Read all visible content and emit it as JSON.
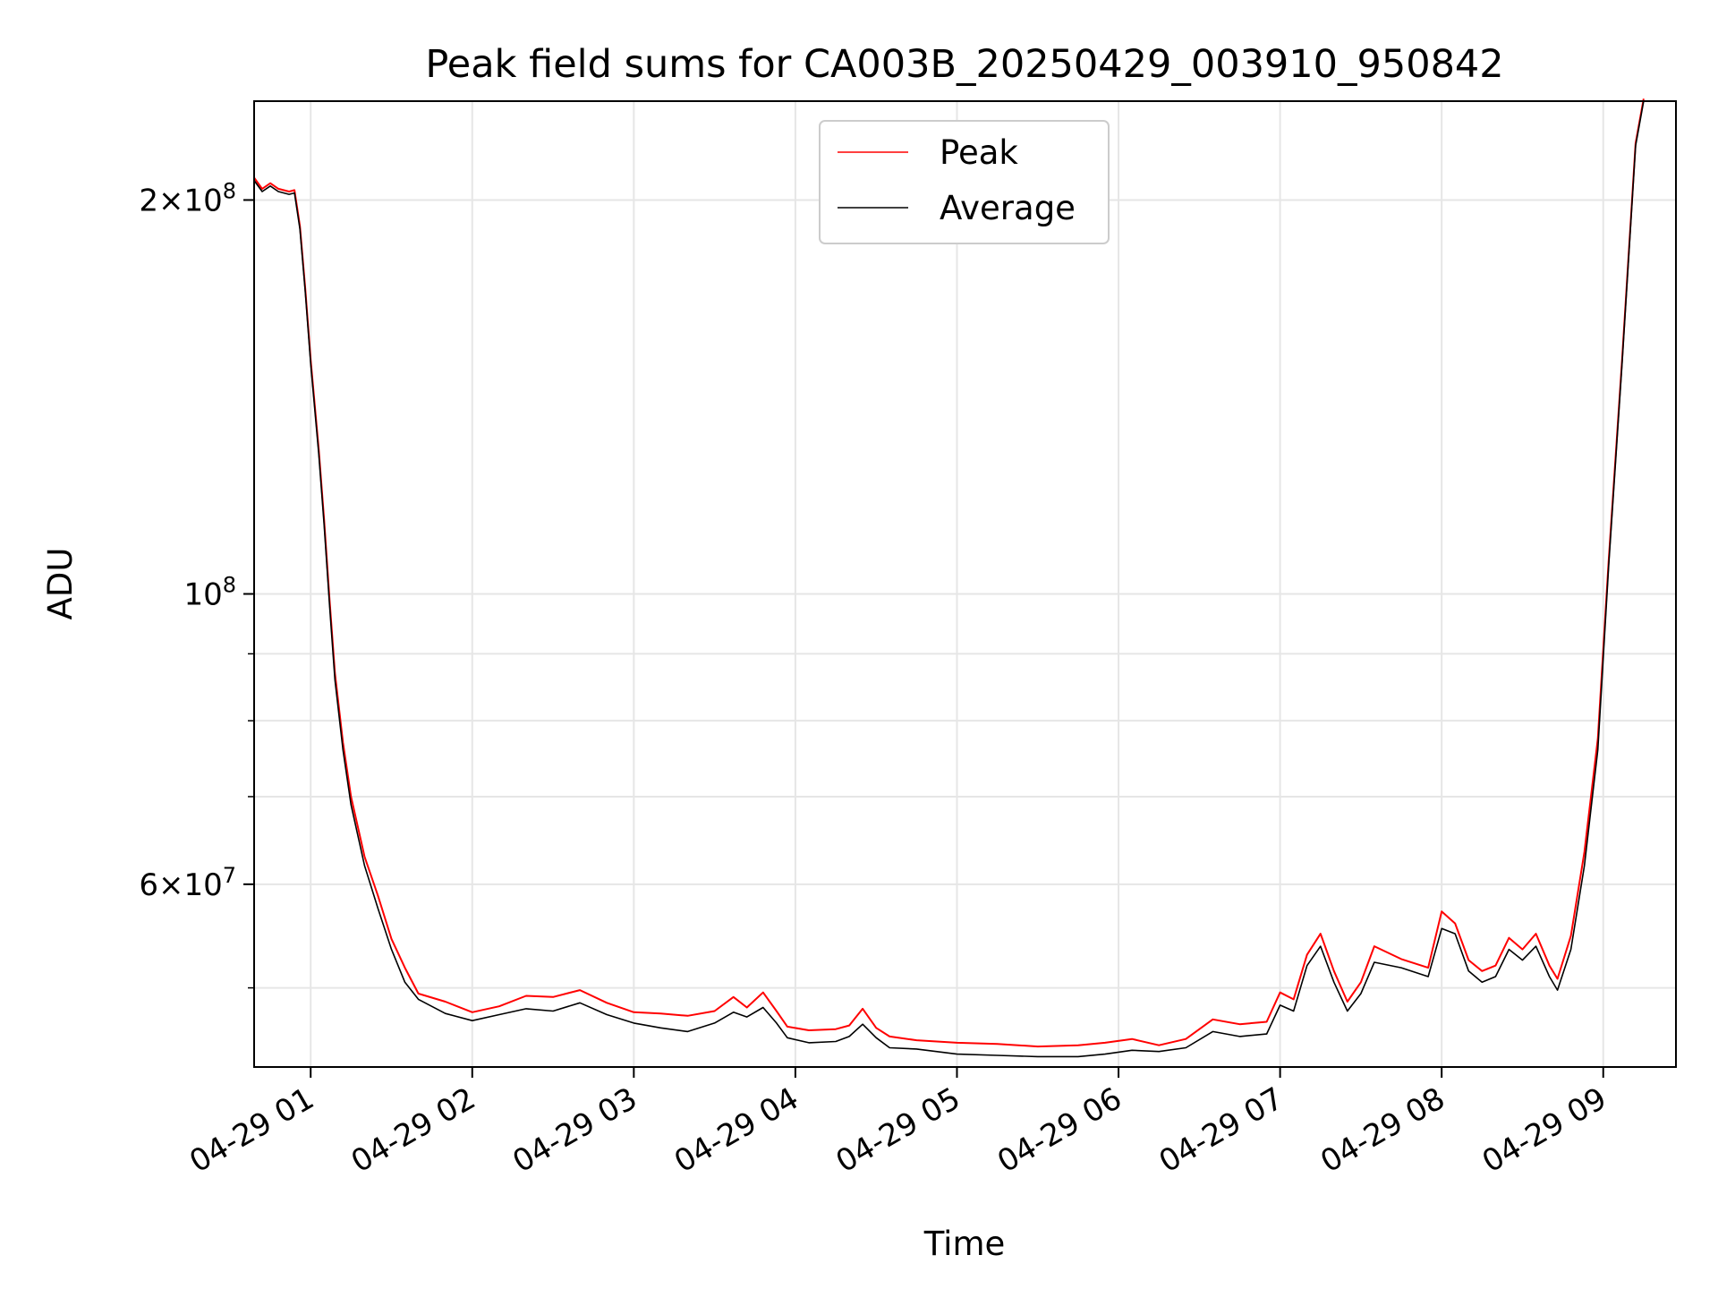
{
  "chart_data": {
    "type": "line",
    "title": "Peak field sums for CA003B_20250429_003910_950842",
    "xlabel": "Time",
    "ylabel": "ADU",
    "yscale": "log",
    "grid": true,
    "legend_position": "top-center",
    "x_axis": {
      "type": "datetime",
      "range": [
        "2025-04-29T00:39",
        "2025-04-29T09:27"
      ],
      "ticks": [
        {
          "value": "2025-04-29T01:00",
          "label": "04-29 01"
        },
        {
          "value": "2025-04-29T02:00",
          "label": "04-29 02"
        },
        {
          "value": "2025-04-29T03:00",
          "label": "04-29 03"
        },
        {
          "value": "2025-04-29T04:00",
          "label": "04-29 04"
        },
        {
          "value": "2025-04-29T05:00",
          "label": "04-29 05"
        },
        {
          "value": "2025-04-29T06:00",
          "label": "04-29 06"
        },
        {
          "value": "2025-04-29T07:00",
          "label": "04-29 07"
        },
        {
          "value": "2025-04-29T08:00",
          "label": "04-29 08"
        },
        {
          "value": "2025-04-29T09:00",
          "label": "04-29 09"
        }
      ]
    },
    "y_axis": {
      "range": [
        43500000,
        238000000
      ],
      "major_ticks": [
        {
          "value": 100000000,
          "base": "10",
          "exp": "8",
          "mant": ""
        },
        {
          "value": 200000000,
          "base": "10",
          "exp": "8",
          "mant": "2"
        },
        {
          "value": 60000000,
          "base": "10",
          "exp": "7",
          "mant": "6"
        }
      ],
      "minor_grid_values": [
        50000000,
        70000000,
        80000000,
        90000000
      ]
    },
    "series": [
      {
        "name": "Average",
        "color": "#000000",
        "points": [
          [
            "2025-04-29T00:39",
            207000000
          ],
          [
            "2025-04-29T00:42",
            203000000
          ],
          [
            "2025-04-29T00:45",
            205000000
          ],
          [
            "2025-04-29T00:48",
            203000000
          ],
          [
            "2025-04-29T00:52",
            202000000
          ],
          [
            "2025-04-29T00:54",
            202500000
          ],
          [
            "2025-04-29T00:56",
            190000000
          ],
          [
            "2025-04-29T00:58",
            170000000
          ],
          [
            "2025-04-29T01:00",
            150000000
          ],
          [
            "2025-04-29T01:03",
            128000000
          ],
          [
            "2025-04-29T01:05",
            113000000
          ],
          [
            "2025-04-29T01:07",
            98000000
          ],
          [
            "2025-04-29T01:09",
            86000000
          ],
          [
            "2025-04-29T01:12",
            76000000
          ],
          [
            "2025-04-29T01:15",
            69000000
          ],
          [
            "2025-04-29T01:20",
            62000000
          ],
          [
            "2025-04-29T01:25",
            57500000
          ],
          [
            "2025-04-29T01:30",
            53500000
          ],
          [
            "2025-04-29T01:35",
            50500000
          ],
          [
            "2025-04-29T01:40",
            49000000
          ],
          [
            "2025-04-29T01:50",
            47800000
          ],
          [
            "2025-04-29T02:00",
            47200000
          ],
          [
            "2025-04-29T02:10",
            47700000
          ],
          [
            "2025-04-29T02:20",
            48200000
          ],
          [
            "2025-04-29T02:30",
            48000000
          ],
          [
            "2025-04-29T02:40",
            48700000
          ],
          [
            "2025-04-29T02:50",
            47700000
          ],
          [
            "2025-04-29T03:00",
            47000000
          ],
          [
            "2025-04-29T03:10",
            46600000
          ],
          [
            "2025-04-29T03:20",
            46300000
          ],
          [
            "2025-04-29T03:30",
            47000000
          ],
          [
            "2025-04-29T03:37",
            47900000
          ],
          [
            "2025-04-29T03:42",
            47500000
          ],
          [
            "2025-04-29T03:48",
            48300000
          ],
          [
            "2025-04-29T03:53",
            47000000
          ],
          [
            "2025-04-29T03:57",
            45800000
          ],
          [
            "2025-04-29T04:05",
            45400000
          ],
          [
            "2025-04-29T04:15",
            45500000
          ],
          [
            "2025-04-29T04:20",
            45900000
          ],
          [
            "2025-04-29T04:25",
            46900000
          ],
          [
            "2025-04-29T04:30",
            45800000
          ],
          [
            "2025-04-29T04:35",
            45000000
          ],
          [
            "2025-04-29T04:45",
            44900000
          ],
          [
            "2025-04-29T05:00",
            44500000
          ],
          [
            "2025-04-29T05:15",
            44400000
          ],
          [
            "2025-04-29T05:30",
            44300000
          ],
          [
            "2025-04-29T05:45",
            44300000
          ],
          [
            "2025-04-29T05:55",
            44500000
          ],
          [
            "2025-04-29T06:05",
            44800000
          ],
          [
            "2025-04-29T06:15",
            44700000
          ],
          [
            "2025-04-29T06:25",
            45000000
          ],
          [
            "2025-04-29T06:35",
            46300000
          ],
          [
            "2025-04-29T06:45",
            45900000
          ],
          [
            "2025-04-29T06:55",
            46100000
          ],
          [
            "2025-04-29T07:00",
            48500000
          ],
          [
            "2025-04-29T07:05",
            48000000
          ],
          [
            "2025-04-29T07:10",
            52000000
          ],
          [
            "2025-04-29T07:15",
            53800000
          ],
          [
            "2025-04-29T07:20",
            50500000
          ],
          [
            "2025-04-29T07:25",
            48000000
          ],
          [
            "2025-04-29T07:30",
            49500000
          ],
          [
            "2025-04-29T07:35",
            52300000
          ],
          [
            "2025-04-29T07:45",
            51800000
          ],
          [
            "2025-04-29T07:55",
            51000000
          ],
          [
            "2025-04-29T08:00",
            55500000
          ],
          [
            "2025-04-29T08:05",
            55000000
          ],
          [
            "2025-04-29T08:10",
            51500000
          ],
          [
            "2025-04-29T08:15",
            50500000
          ],
          [
            "2025-04-29T08:20",
            51000000
          ],
          [
            "2025-04-29T08:25",
            53500000
          ],
          [
            "2025-04-29T08:30",
            52500000
          ],
          [
            "2025-04-29T08:35",
            53800000
          ],
          [
            "2025-04-29T08:40",
            51000000
          ],
          [
            "2025-04-29T08:43",
            49800000
          ],
          [
            "2025-04-29T08:48",
            53500000
          ],
          [
            "2025-04-29T08:53",
            62000000
          ],
          [
            "2025-04-29T08:58",
            76000000
          ],
          [
            "2025-04-29T09:02",
            105000000
          ],
          [
            "2025-04-29T09:07",
            150000000
          ],
          [
            "2025-04-29T09:12",
            220000000
          ],
          [
            "2025-04-29T09:15",
            238000000
          ]
        ]
      },
      {
        "name": "Peak",
        "color": "#ff0000",
        "points": [
          [
            "2025-04-29T00:39",
            208000000
          ],
          [
            "2025-04-29T00:42",
            204000000
          ],
          [
            "2025-04-29T00:45",
            206000000
          ],
          [
            "2025-04-29T00:48",
            204000000
          ],
          [
            "2025-04-29T00:52",
            203000000
          ],
          [
            "2025-04-29T00:54",
            203500000
          ],
          [
            "2025-04-29T00:56",
            191000000
          ],
          [
            "2025-04-29T00:58",
            171000000
          ],
          [
            "2025-04-29T01:00",
            151000000
          ],
          [
            "2025-04-29T01:03",
            129000000
          ],
          [
            "2025-04-29T01:05",
            114000000
          ],
          [
            "2025-04-29T01:07",
            99000000
          ],
          [
            "2025-04-29T01:09",
            87000000
          ],
          [
            "2025-04-29T01:12",
            77000000
          ],
          [
            "2025-04-29T01:15",
            70000000
          ],
          [
            "2025-04-29T01:20",
            63000000
          ],
          [
            "2025-04-29T01:25",
            58800000
          ],
          [
            "2025-04-29T01:30",
            54500000
          ],
          [
            "2025-04-29T01:35",
            51800000
          ],
          [
            "2025-04-29T01:40",
            49500000
          ],
          [
            "2025-04-29T01:50",
            48800000
          ],
          [
            "2025-04-29T02:00",
            47900000
          ],
          [
            "2025-04-29T02:10",
            48400000
          ],
          [
            "2025-04-29T02:20",
            49300000
          ],
          [
            "2025-04-29T02:30",
            49200000
          ],
          [
            "2025-04-29T02:40",
            49800000
          ],
          [
            "2025-04-29T02:50",
            48700000
          ],
          [
            "2025-04-29T03:00",
            47900000
          ],
          [
            "2025-04-29T03:10",
            47800000
          ],
          [
            "2025-04-29T03:20",
            47600000
          ],
          [
            "2025-04-29T03:30",
            48000000
          ],
          [
            "2025-04-29T03:37",
            49200000
          ],
          [
            "2025-04-29T03:42",
            48300000
          ],
          [
            "2025-04-29T03:48",
            49600000
          ],
          [
            "2025-04-29T03:53",
            48000000
          ],
          [
            "2025-04-29T03:57",
            46700000
          ],
          [
            "2025-04-29T04:05",
            46400000
          ],
          [
            "2025-04-29T04:15",
            46500000
          ],
          [
            "2025-04-29T04:20",
            46800000
          ],
          [
            "2025-04-29T04:25",
            48200000
          ],
          [
            "2025-04-29T04:30",
            46600000
          ],
          [
            "2025-04-29T04:35",
            45900000
          ],
          [
            "2025-04-29T04:45",
            45600000
          ],
          [
            "2025-04-29T05:00",
            45400000
          ],
          [
            "2025-04-29T05:15",
            45300000
          ],
          [
            "2025-04-29T05:30",
            45100000
          ],
          [
            "2025-04-29T05:45",
            45200000
          ],
          [
            "2025-04-29T05:55",
            45400000
          ],
          [
            "2025-04-29T06:05",
            45700000
          ],
          [
            "2025-04-29T06:15",
            45200000
          ],
          [
            "2025-04-29T06:25",
            45700000
          ],
          [
            "2025-04-29T06:35",
            47300000
          ],
          [
            "2025-04-29T06:45",
            46900000
          ],
          [
            "2025-04-29T06:55",
            47100000
          ],
          [
            "2025-04-29T07:00",
            49600000
          ],
          [
            "2025-04-29T07:05",
            49000000
          ],
          [
            "2025-04-29T07:10",
            53000000
          ],
          [
            "2025-04-29T07:15",
            55000000
          ],
          [
            "2025-04-29T07:20",
            51500000
          ],
          [
            "2025-04-29T07:25",
            48800000
          ],
          [
            "2025-04-29T07:30",
            50500000
          ],
          [
            "2025-04-29T07:35",
            53800000
          ],
          [
            "2025-04-29T07:45",
            52600000
          ],
          [
            "2025-04-29T07:55",
            51800000
          ],
          [
            "2025-04-29T08:00",
            57200000
          ],
          [
            "2025-04-29T08:05",
            56000000
          ],
          [
            "2025-04-29T08:10",
            52500000
          ],
          [
            "2025-04-29T08:15",
            51500000
          ],
          [
            "2025-04-29T08:20",
            52000000
          ],
          [
            "2025-04-29T08:25",
            54600000
          ],
          [
            "2025-04-29T08:30",
            53500000
          ],
          [
            "2025-04-29T08:35",
            55000000
          ],
          [
            "2025-04-29T08:40",
            52000000
          ],
          [
            "2025-04-29T08:43",
            50800000
          ],
          [
            "2025-04-29T08:48",
            54800000
          ],
          [
            "2025-04-29T08:53",
            63500000
          ],
          [
            "2025-04-29T08:58",
            77500000
          ],
          [
            "2025-04-29T09:02",
            106000000
          ],
          [
            "2025-04-29T09:07",
            151000000
          ],
          [
            "2025-04-29T09:12",
            221000000
          ],
          [
            "2025-04-29T09:15",
            239000000
          ]
        ]
      }
    ],
    "legend": [
      {
        "label": "Peak",
        "color": "#ff0000"
      },
      {
        "label": "Average",
        "color": "#000000"
      }
    ]
  }
}
